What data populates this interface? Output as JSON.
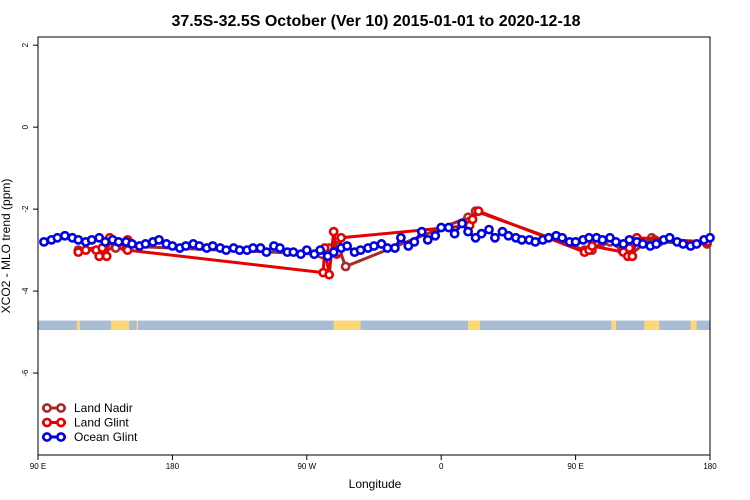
{
  "chart_data": {
    "type": "line",
    "title": "37.5S-32.5S October (Ver 10)   2015-01-01 to 2020-12-18",
    "xlabel": "Longitude",
    "ylabel": "XCO2 - MLO trend (ppm)",
    "xlim": [
      90,
      540
    ],
    "ylim": [
      -8,
      2.2
    ],
    "yticks": [
      2,
      0,
      -2,
      -4,
      -6
    ],
    "xticks": [
      {
        "value": 90,
        "label": "90 E"
      },
      {
        "value": 180,
        "label": "180"
      },
      {
        "value": 270,
        "label": "90 W"
      },
      {
        "value": 360,
        "label": "0"
      },
      {
        "value": 450,
        "label": "90 E"
      },
      {
        "value": 540,
        "label": "180"
      }
    ],
    "grid": false,
    "legend_position": "bottom-left",
    "land_band": {
      "y_range": [
        -4.95,
        -4.72
      ],
      "ocean_color": "#a9bcd6",
      "land_color": "#ffd876",
      "land_segments": [
        [
          116,
          118
        ],
        [
          139,
          151
        ],
        [
          156,
          157
        ],
        [
          288,
          306
        ],
        [
          378,
          386
        ],
        [
          474,
          477
        ],
        [
          496,
          506
        ],
        [
          527,
          531
        ]
      ]
    },
    "series": [
      {
        "name": "Land Nadir",
        "color": "#a52a2a",
        "x": [
          117,
          137,
          142,
          147,
          280,
          285,
          290,
          291,
          296,
          378,
          379,
          383,
          456,
          461,
          468,
          473,
          481,
          484,
          485,
          487,
          501,
          503,
          504,
          506,
          538
        ],
        "y": [
          -3.0,
          -2.9,
          -2.95,
          -2.9,
          -3.1,
          -2.95,
          -3.1,
          -2.9,
          -3.4,
          -2.2,
          -2.3,
          -2.05,
          -3.0,
          -3.0,
          -2.8,
          -2.8,
          -3.0,
          -3.0,
          -3.05,
          -3.1,
          -2.7,
          -2.75,
          -2.85,
          -2.8,
          -2.85
        ]
      },
      {
        "name": "Land Glint",
        "color": "#e60000",
        "x": [
          117,
          122,
          129,
          131,
          133,
          136,
          138,
          149,
          149,
          150,
          150,
          281,
          282,
          285,
          288,
          290,
          291,
          293,
          379,
          381,
          385,
          456,
          459,
          461,
          482,
          485,
          486,
          488,
          491,
          538
        ],
        "y": [
          -3.05,
          -3.0,
          -3.0,
          -3.15,
          -2.95,
          -3.15,
          -2.7,
          -2.85,
          -2.95,
          -2.75,
          -3.0,
          -3.55,
          -2.95,
          -3.6,
          -2.55,
          -3.0,
          -3.05,
          -2.7,
          -2.4,
          -2.25,
          -2.05,
          -3.05,
          -3.0,
          -2.9,
          -3.05,
          -3.15,
          -2.95,
          -3.15,
          -2.7,
          -2.8
        ]
      },
      {
        "name": "Ocean Glint",
        "color": "#0000e6",
        "x": [
          94,
          99,
          103,
          108,
          113,
          117,
          122,
          126,
          131,
          135,
          140,
          144,
          149,
          153,
          158,
          162,
          167,
          171,
          176,
          180,
          185,
          189,
          194,
          198,
          203,
          207,
          212,
          216,
          221,
          225,
          230,
          234,
          239,
          243,
          248,
          252,
          257,
          261,
          266,
          270,
          275,
          279,
          284,
          288,
          293,
          297,
          302,
          306,
          311,
          315,
          320,
          324,
          329,
          333,
          338,
          342,
          347,
          351,
          356,
          360,
          365,
          369,
          374,
          378,
          383,
          387,
          392,
          396,
          401,
          405,
          410,
          414,
          419,
          423,
          428,
          432,
          437,
          441,
          446,
          450,
          455,
          459,
          464,
          468,
          473,
          477,
          482,
          486,
          491,
          495,
          500,
          504,
          509,
          513,
          518,
          522,
          527,
          531,
          536,
          540
        ],
        "y": [
          -2.8,
          -2.75,
          -2.7,
          -2.65,
          -2.7,
          -2.75,
          -2.8,
          -2.75,
          -2.7,
          -2.8,
          -2.75,
          -2.8,
          -2.8,
          -2.85,
          -2.9,
          -2.85,
          -2.8,
          -2.75,
          -2.85,
          -2.9,
          -2.95,
          -2.9,
          -2.85,
          -2.9,
          -2.95,
          -2.9,
          -2.95,
          -3.0,
          -2.95,
          -3.0,
          -3.0,
          -2.95,
          -2.95,
          -3.05,
          -2.9,
          -2.95,
          -3.05,
          -3.05,
          -3.1,
          -3.0,
          -3.1,
          -3.0,
          -3.15,
          -3.05,
          -2.95,
          -2.9,
          -3.05,
          -3.0,
          -2.95,
          -2.9,
          -2.85,
          -2.95,
          -2.95,
          -2.7,
          -2.9,
          -2.8,
          -2.55,
          -2.75,
          -2.65,
          -2.45,
          -2.45,
          -2.6,
          -2.35,
          -2.55,
          -2.7,
          -2.6,
          -2.5,
          -2.7,
          -2.55,
          -2.65,
          -2.7,
          -2.75,
          -2.75,
          -2.8,
          -2.75,
          -2.7,
          -2.65,
          -2.7,
          -2.8,
          -2.8,
          -2.75,
          -2.7,
          -2.7,
          -2.75,
          -2.7,
          -2.8,
          -2.85,
          -2.75,
          -2.8,
          -2.85,
          -2.9,
          -2.85,
          -2.75,
          -2.7,
          -2.8,
          -2.85,
          -2.9,
          -2.85,
          -2.75,
          -2.7
        ]
      }
    ]
  }
}
